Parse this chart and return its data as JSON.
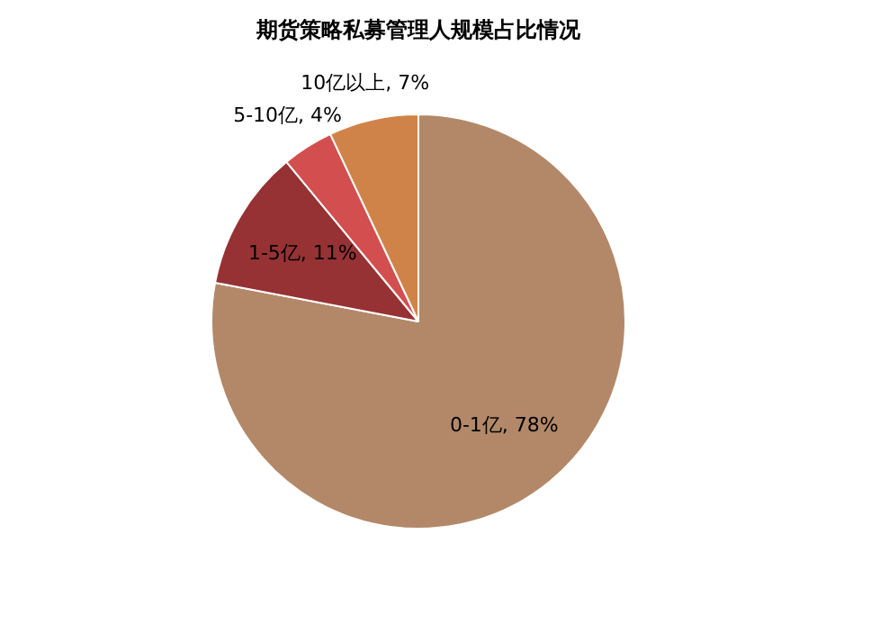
{
  "chart_data": {
    "type": "pie",
    "title": "期货策略私募管理人规模占比情况",
    "categories": [
      "0-1亿",
      "1-5亿",
      "5-10亿",
      "10亿以上"
    ],
    "values": [
      78,
      11,
      4,
      7
    ],
    "value_labels": [
      "78%",
      "11%",
      "4%",
      "7%"
    ],
    "colors": [
      "#b38868",
      "#963234",
      "#d34f4f",
      "#d08348"
    ]
  }
}
